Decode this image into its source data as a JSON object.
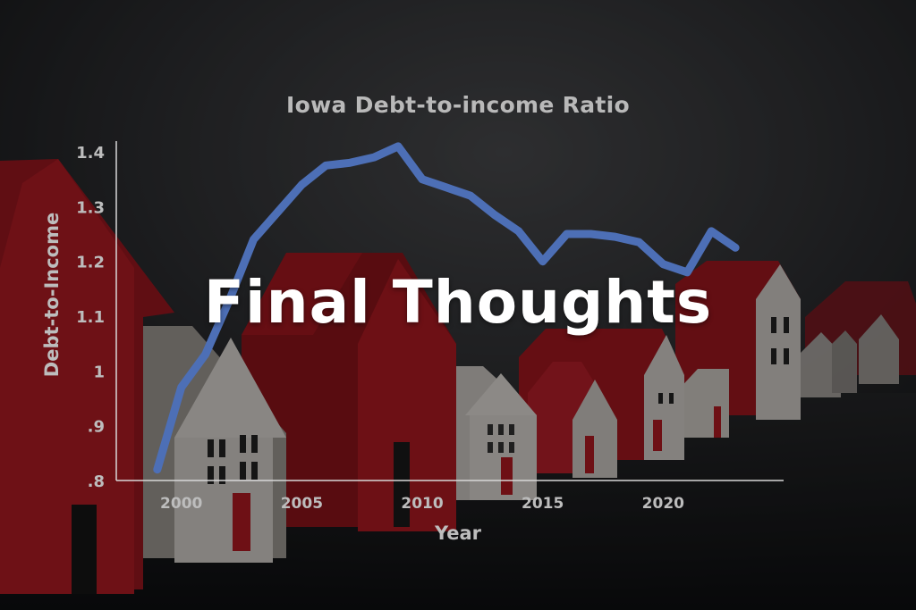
{
  "colors": {
    "line": "#4d6fb6",
    "axis": "#d8d8d8",
    "text": "#bdbdbd",
    "house_red": "#b21a22",
    "house_white": "#d9d4cf",
    "background": "#1a1b1d"
  },
  "overlay": {
    "text": "Final Thoughts"
  },
  "chart_data": {
    "type": "line",
    "title": "Iowa Debt-to-income Ratio",
    "xlabel": "Year",
    "ylabel": "Debt-to-Income",
    "xlim": [
      1997.3,
      2025
    ],
    "ylim": [
      0.8,
      1.4
    ],
    "x_ticks": [
      2000,
      2005,
      2010,
      2015,
      2020
    ],
    "y_ticks": [
      {
        "value": 0.8,
        "label": ".8"
      },
      {
        "value": 0.9,
        "label": ".9"
      },
      {
        "value": 1.0,
        "label": "1"
      },
      {
        "value": 1.1,
        "label": "1.1"
      },
      {
        "value": 1.2,
        "label": "1.2"
      },
      {
        "value": 1.3,
        "label": "1.3"
      },
      {
        "value": 1.4,
        "label": "1.4"
      }
    ],
    "grid": false,
    "series": [
      {
        "x": [
          1999,
          2000,
          2001,
          2002,
          2003,
          2004,
          2005,
          2006,
          2007,
          2008,
          2009,
          2010,
          2011,
          2012,
          2013,
          2014,
          2015,
          2016,
          2017,
          2018,
          2019,
          2020,
          2021,
          2022,
          2023
        ],
        "values": [
          0.82,
          0.97,
          1.03,
          1.13,
          1.24,
          1.29,
          1.34,
          1.375,
          1.38,
          1.39,
          1.41,
          1.35,
          1.335,
          1.32,
          1.285,
          1.255,
          1.2,
          1.25,
          1.25,
          1.245,
          1.235,
          1.195,
          1.18,
          1.255,
          1.225
        ]
      }
    ]
  }
}
